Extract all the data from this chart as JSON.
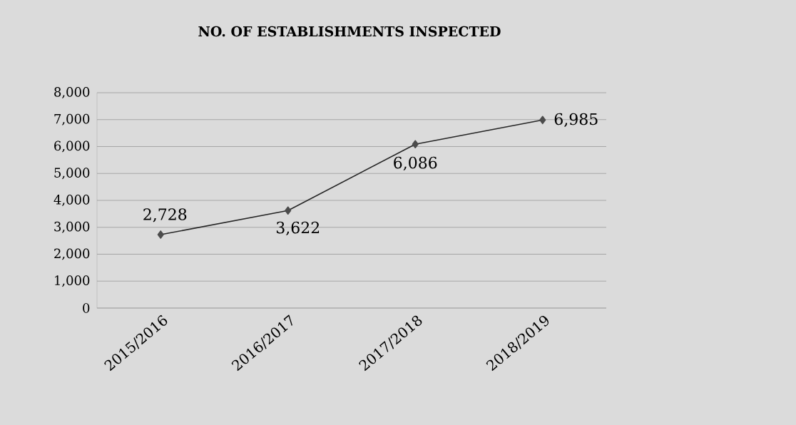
{
  "chart_data": {
    "type": "line",
    "title": "NO. OF ESTABLISHMENTS INSPECTED",
    "categories": [
      "2015/2016",
      "2016/2017",
      "2017/2018",
      "2018/2019"
    ],
    "values": [
      2728,
      3622,
      6086,
      6985
    ],
    "value_labels": [
      "2,728",
      "3,622",
      "6,086",
      "6,985"
    ],
    "color": "#262626",
    "marker": "diamond",
    "grid": "y",
    "ylim": [
      0,
      8000
    ],
    "yticks": [
      0,
      {
        "value": 1000,
        "label": "1,000"
      },
      {
        "value": 2000,
        "label": "2,000"
      },
      {
        "value": 3000,
        "label": "3,000"
      },
      {
        "value": 4000,
        "label": "4,000"
      },
      {
        "value": 5000,
        "label": "5,000"
      },
      {
        "value": 6000,
        "label": "6,000"
      },
      {
        "value": 7000,
        "label": "7,000"
      },
      {
        "value": 8000,
        "label": "8,000"
      }
    ]
  }
}
